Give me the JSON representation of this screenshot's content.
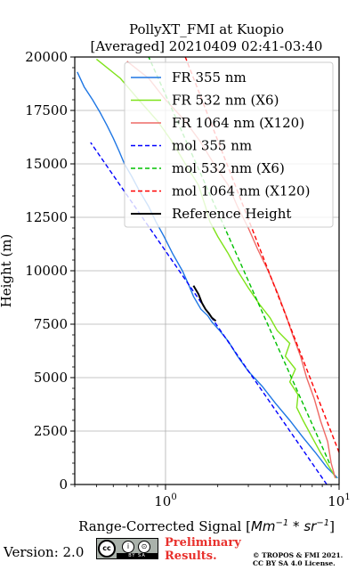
{
  "chart_data": {
    "type": "line",
    "title": [
      "PollyXT_FMI at Kuopio",
      "[Averaged] 20210409 02:41-03:40"
    ],
    "xlabel": "Range-Corrected Signal [",
    "xlabel_units": "Mm",
    "xlabel_exp": "−1",
    "xlabel_mid": " * sr",
    "xlabel_exp2": "−1",
    "xlabel_end": "]",
    "ylabel": "Height (m)",
    "x_scale": "log",
    "xlim": [
      0.3,
      10
    ],
    "ylim": [
      0,
      20000
    ],
    "x_ticks": [
      {
        "value": 1,
        "base": "10",
        "exp": "0"
      },
      {
        "value": 10,
        "base": "10",
        "exp": "1"
      }
    ],
    "y_ticks": [
      0,
      2500,
      5000,
      7500,
      10000,
      12500,
      15000,
      17500,
      20000
    ],
    "grid": true,
    "legend_position": "top-right",
    "series": [
      {
        "name": "FR 355 nm",
        "color": "#1f77e4",
        "style": "solid",
        "points": [
          [
            9.8,
            300
          ],
          [
            8.5,
            800
          ],
          [
            7.3,
            1500
          ],
          [
            6.2,
            2200
          ],
          [
            5.2,
            3000
          ],
          [
            4.3,
            3800
          ],
          [
            3.6,
            4600
          ],
          [
            3.0,
            5300
          ],
          [
            2.6,
            6000
          ],
          [
            2.3,
            6700
          ],
          [
            2.05,
            7200
          ],
          [
            1.85,
            7600
          ],
          [
            1.75,
            7900
          ],
          [
            1.6,
            8200
          ],
          [
            1.45,
            8800
          ],
          [
            1.35,
            9400
          ],
          [
            1.25,
            10000
          ],
          [
            1.1,
            10800
          ],
          [
            0.98,
            11600
          ],
          [
            0.88,
            12300
          ],
          [
            0.8,
            13000
          ],
          [
            0.7,
            13800
          ],
          [
            0.64,
            14400
          ],
          [
            0.58,
            15000
          ],
          [
            0.54,
            15600
          ],
          [
            0.5,
            16200
          ],
          [
            0.46,
            16800
          ],
          [
            0.42,
            17400
          ],
          [
            0.38,
            18000
          ],
          [
            0.34,
            18600
          ],
          [
            0.31,
            19300
          ]
        ]
      },
      {
        "name": "FR 532 nm (X6)",
        "color": "#7fe31a",
        "style": "solid",
        "points": [
          [
            9.6,
            300
          ],
          [
            8.8,
            800
          ],
          [
            7.8,
            1500
          ],
          [
            7.0,
            2200
          ],
          [
            6.2,
            3000
          ],
          [
            5.7,
            3600
          ],
          [
            5.8,
            4200
          ],
          [
            5.2,
            4800
          ],
          [
            5.6,
            5400
          ],
          [
            4.9,
            6000
          ],
          [
            5.2,
            6600
          ],
          [
            4.4,
            7200
          ],
          [
            4.0,
            7800
          ],
          [
            3.5,
            8400
          ],
          [
            3.0,
            9200
          ],
          [
            2.6,
            10000
          ],
          [
            2.3,
            10800
          ],
          [
            2.0,
            11600
          ],
          [
            1.8,
            12300
          ],
          [
            1.7,
            13000
          ],
          [
            1.55,
            14000
          ],
          [
            1.3,
            15000
          ],
          [
            1.1,
            16000
          ],
          [
            0.9,
            17000
          ],
          [
            0.7,
            18000
          ],
          [
            0.55,
            19000
          ],
          [
            0.4,
            19900
          ]
        ]
      },
      {
        "name": "FR 1064 nm (X120)",
        "color": "#ee6a66",
        "style": "solid",
        "points": [
          [
            9.5,
            300
          ],
          [
            9.0,
            1000
          ],
          [
            8.6,
            2000
          ],
          [
            7.8,
            3000
          ],
          [
            7.2,
            4000
          ],
          [
            6.5,
            5000
          ],
          [
            6.0,
            6000
          ],
          [
            5.4,
            7000
          ],
          [
            4.9,
            8000
          ],
          [
            4.4,
            9000
          ],
          [
            3.9,
            10000
          ],
          [
            3.4,
            11000
          ],
          [
            3.0,
            12000
          ],
          [
            2.6,
            13000
          ],
          [
            2.3,
            14000
          ],
          [
            1.9,
            15000
          ],
          [
            1.6,
            16000
          ],
          [
            1.3,
            17000
          ],
          [
            1.0,
            18000
          ],
          [
            0.8,
            19000
          ],
          [
            0.6,
            19800
          ]
        ]
      },
      {
        "name": "mol 355 nm",
        "color": "#0000ff",
        "style": "dashed",
        "points": [
          [
            8.5,
            0
          ],
          [
            0.37,
            16000
          ]
        ]
      },
      {
        "name": "mol 532 nm (X6)",
        "color": "#00c000",
        "style": "dashed",
        "points": [
          [
            8.8,
            1000
          ],
          [
            0.8,
            20000
          ]
        ]
      },
      {
        "name": "mol 1064 nm (X120)",
        "color": "#ff0000",
        "style": "dashed",
        "points": [
          [
            10,
            1500
          ],
          [
            1.3,
            20000
          ]
        ]
      },
      {
        "name": "Reference Height",
        "color": "#000000",
        "style": "solid",
        "points": [
          [
            1.45,
            9300
          ],
          [
            1.55,
            8900
          ],
          [
            1.62,
            8500
          ],
          [
            1.7,
            8200
          ],
          [
            1.78,
            8000
          ],
          [
            1.85,
            7800
          ],
          [
            1.95,
            7650
          ]
        ]
      }
    ]
  },
  "footer": {
    "version": "Version: 2.0",
    "cc_badge": {
      "left": "cc",
      "icon1": "i",
      "icon2": "⊙",
      "strip": "BY SA"
    },
    "preliminary": [
      "Preliminary",
      "Results."
    ],
    "copyright": [
      "© TROPOS & FMI 2021.",
      "CC BY SA 4.0 License."
    ]
  }
}
